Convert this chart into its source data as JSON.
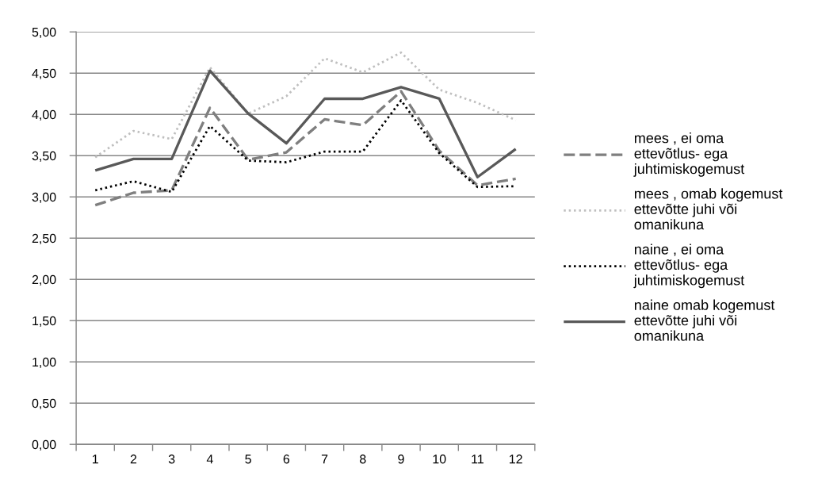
{
  "chart_data": {
    "type": "line",
    "categories": [
      "1",
      "2",
      "3",
      "4",
      "5",
      "6",
      "7",
      "8",
      "9",
      "10",
      "11",
      "12"
    ],
    "ylim": [
      0,
      5
    ],
    "yticks": [
      {
        "value": 0,
        "label": "0,00"
      },
      {
        "value": 0.5,
        "label": "0,50"
      },
      {
        "value": 1,
        "label": "1,00"
      },
      {
        "value": 1.5,
        "label": "1,50"
      },
      {
        "value": 2,
        "label": "2,00"
      },
      {
        "value": 2.5,
        "label": "2,50"
      },
      {
        "value": 3,
        "label": "3,00"
      },
      {
        "value": 3.5,
        "label": "3,50"
      },
      {
        "value": 4,
        "label": "4,00"
      },
      {
        "value": 4.5,
        "label": "4,50"
      },
      {
        "value": 5,
        "label": "5,00"
      }
    ],
    "grid": "y",
    "legend": "right",
    "marker": "none",
    "series": [
      {
        "name": "mees , ei oma ettevõtlus- ega juhtimiskogemust",
        "color": "#7f7f7f",
        "line_style": "dashed",
        "values": [
          2.9,
          3.05,
          3.08,
          4.08,
          3.45,
          3.54,
          3.94,
          3.87,
          4.28,
          3.56,
          3.14,
          3.22
        ]
      },
      {
        "name": "mees , omab kogemust ettevõtte juhi või omanikuna",
        "color": "#bfbfbf",
        "line_style": "dotted",
        "values": [
          3.48,
          3.8,
          3.7,
          4.57,
          4.01,
          4.22,
          4.68,
          4.51,
          4.75,
          4.3,
          4.14,
          3.93
        ]
      },
      {
        "name": "naine , ei oma ettevõtlus- ega juhtimiskogemust",
        "color": "#000000",
        "line_style": "dotted",
        "values": [
          3.08,
          3.19,
          3.06,
          3.86,
          3.44,
          3.42,
          3.55,
          3.55,
          4.17,
          3.53,
          3.12,
          3.13
        ]
      },
      {
        "name": "naine omab kogemust ettevõtte juhi või omanikuna",
        "color": "#595959",
        "line_style": "solid",
        "values": [
          3.32,
          3.46,
          3.46,
          4.53,
          4.01,
          3.65,
          4.19,
          4.19,
          4.33,
          4.19,
          3.24,
          3.58
        ]
      }
    ]
  }
}
